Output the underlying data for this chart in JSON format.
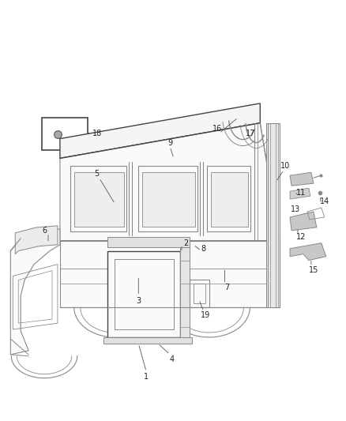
{
  "bg_color": "#ffffff",
  "line_color": "#888888",
  "dark_line": "#444444",
  "label_color": "#333333",
  "figsize": [
    4.38,
    5.33
  ],
  "dpi": 100
}
